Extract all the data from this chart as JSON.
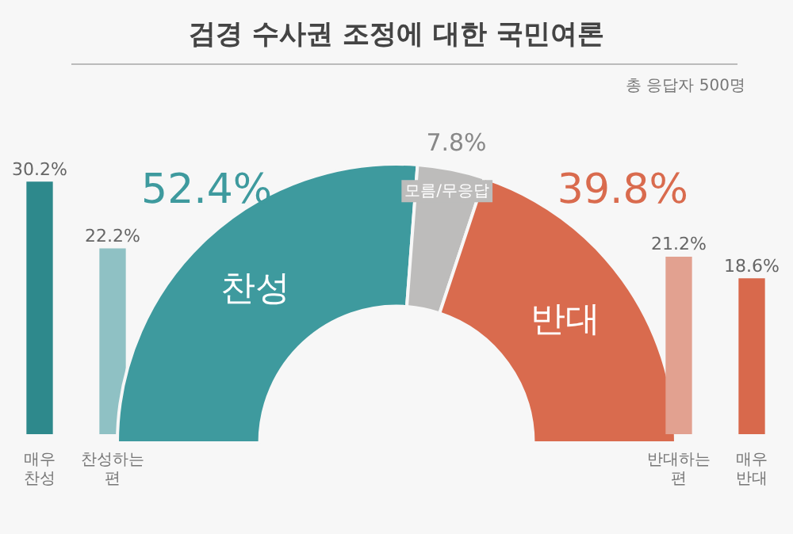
{
  "chart_data": [
    {
      "type": "bar",
      "categories": [
        "매우 찬성",
        "찬성하는 편"
      ],
      "values": [
        30.2,
        22.2
      ],
      "colors": [
        "#2e898c",
        "#8fc1c4"
      ],
      "value_labels": [
        "30.2%",
        "22.2%"
      ],
      "tick_labels": "x",
      "grid": false,
      "legend": false
    },
    {
      "type": "donut",
      "title": "검경 수사권 조정에 대한 국민여론",
      "annotations": [
        "총 응답자 500명"
      ],
      "categories": [
        "찬성",
        "모름/무응답",
        "반대"
      ],
      "values": [
        52.4,
        7.8,
        39.8
      ],
      "colors": [
        "#3e9a9e",
        "#bdbcbb",
        "#d96b4e"
      ],
      "value_labels": [
        "52.4%",
        "7.8%",
        "39.8%"
      ],
      "legend": false
    },
    {
      "type": "bar",
      "categories": [
        "반대하는 편",
        "매우 반대"
      ],
      "values": [
        21.2,
        18.6
      ],
      "colors": [
        "#e2a190",
        "#d8694c"
      ],
      "value_labels": [
        "21.2%",
        "18.6%"
      ],
      "tick_labels": "x",
      "grid": false,
      "legend": false
    }
  ]
}
